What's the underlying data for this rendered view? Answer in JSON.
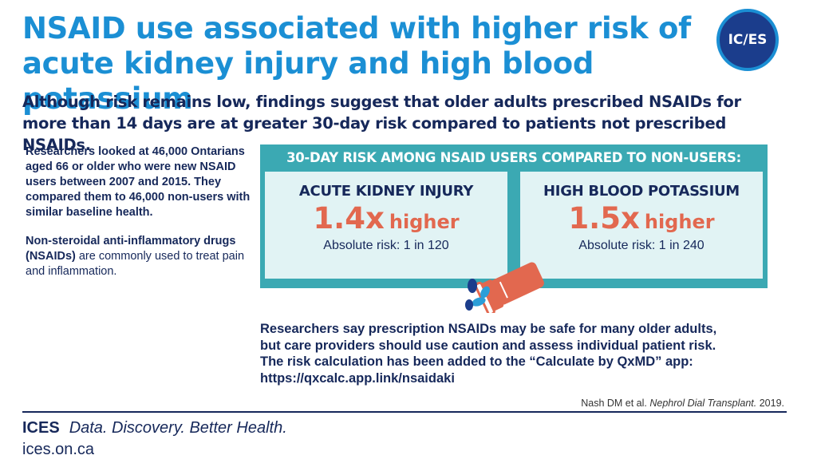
{
  "title": "NSAID use associated with higher risk of acute kidney injury and high blood potassium",
  "logo_text": "IC/ES",
  "subtitle": "Although risk remains low, findings suggest that older adults prescribed NSAIDs for more than 14 days are at greater 30-day risk compared to patients not prescribed NSAIDs.",
  "left_column": {
    "study_text": "Researchers looked at 46,000 Ontarians aged 66 or older who were new NSAID users between 2007 and 2015. They compared them to 46,000 non-users with similar baseline health.",
    "definition_bold": "Non-steroidal anti-inflammatory drugs (NSAIDs)",
    "definition_rest": " are commonly used to treat pain and inflammation."
  },
  "risk_panel": {
    "header": "30-DAY RISK AMONG NSAID USERS COMPARED TO NON-USERS:",
    "outcomes": [
      {
        "name": "ACUTE KIDNEY INJURY",
        "ratio": "1.4x",
        "ratio_word": "higher",
        "absolute_risk": "Absolute risk: 1 in 120"
      },
      {
        "name": "HIGH BLOOD POTASSIUM",
        "ratio": "1.5x",
        "ratio_word": "higher",
        "absolute_risk": "Absolute risk: 1 in 240"
      }
    ]
  },
  "message": {
    "line1": "Researchers say prescription NSAIDs may be safe for many older adults,",
    "line2": "but care providers should use caution and assess individual patient risk.",
    "line3": "The risk calculation has been added to the “Calculate by QxMD” app:",
    "line4": "https://qxcalc.app.link/nsaidaki"
  },
  "citation": {
    "authors": "Nash DM et al.",
    "journal": "Nephrol Dial Transplant.",
    "year": "2019."
  },
  "footer": {
    "brand": "ICES",
    "tagline": "Data. Discovery. Better Health.",
    "url": "ices.on.ca"
  },
  "colors": {
    "title_blue": "#1b8fd4",
    "navy": "#16285a",
    "teal": "#3ba9b3",
    "light_teal": "#e1f3f4",
    "coral": "#e2684f",
    "pill_blue": "#2b9ed8"
  },
  "icons": [
    "pill-bottle-icon"
  ]
}
